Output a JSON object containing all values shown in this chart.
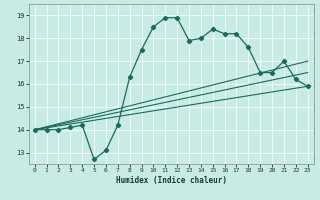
{
  "xlabel": "Humidex (Indice chaleur)",
  "bg_color": "#c8ebe6",
  "line_color": "#1a6b5a",
  "xlim": [
    -0.5,
    23.5
  ],
  "ylim": [
    12.5,
    19.5
  ],
  "xticks": [
    0,
    1,
    2,
    3,
    4,
    5,
    6,
    7,
    8,
    9,
    10,
    11,
    12,
    13,
    14,
    15,
    16,
    17,
    18,
    19,
    20,
    21,
    22,
    23
  ],
  "yticks": [
    13,
    14,
    15,
    16,
    17,
    18,
    19
  ],
  "curve1_x": [
    0,
    1,
    2,
    3,
    4,
    5,
    6,
    7,
    8,
    9,
    10,
    11,
    12,
    13,
    14,
    15,
    16,
    17,
    18,
    19,
    20,
    21,
    22,
    23
  ],
  "curve1_y": [
    14.0,
    14.0,
    14.0,
    14.1,
    14.2,
    12.7,
    13.1,
    14.2,
    16.3,
    17.5,
    18.5,
    18.9,
    18.9,
    17.9,
    18.0,
    18.4,
    18.2,
    18.2,
    17.6,
    16.5,
    16.5,
    17.0,
    16.2,
    15.9
  ],
  "line2_x": [
    0,
    23
  ],
  "line2_y": [
    14.0,
    15.9
  ],
  "line3_x": [
    0,
    23
  ],
  "line3_y": [
    14.0,
    16.5
  ],
  "line4_x": [
    0,
    23
  ],
  "line4_y": [
    14.0,
    17.0
  ]
}
